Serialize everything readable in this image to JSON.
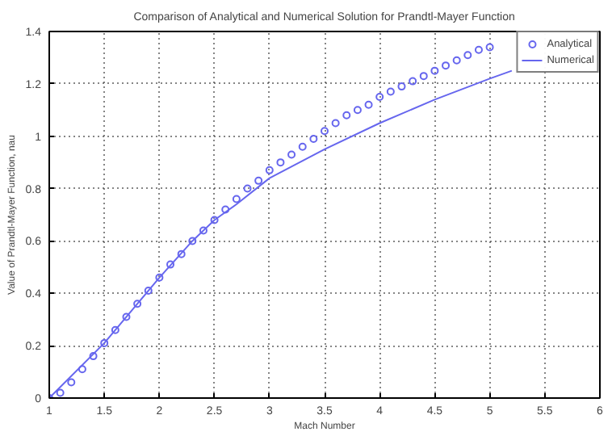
{
  "chart_data": {
    "type": "scatter",
    "title": "Comparison of Analytical and Numerical Solution for Prandtl-Mayer Function",
    "xlabel": "Mach Number",
    "ylabel": "Value of Prandtl-Mayer Function, nau",
    "xlim": [
      1,
      6
    ],
    "ylim": [
      0,
      1.4
    ],
    "xticks": [
      1,
      1.5,
      2,
      2.5,
      3,
      3.5,
      4,
      4.5,
      5,
      5.5,
      6
    ],
    "yticks": [
      0,
      0.2,
      0.4,
      0.6,
      0.8,
      1,
      1.2,
      1.4
    ],
    "grid": true,
    "legend": "top right",
    "marker": "circle",
    "series": [
      {
        "name": "Analytical",
        "color": "#6666ee",
        "x": [
          1,
          1.1,
          1.2,
          1.3,
          1.4,
          1.5,
          1.6,
          1.7,
          1.8,
          1.9,
          2,
          2.1,
          2.2,
          2.3,
          2.4,
          2.5,
          2.6,
          2.7,
          2.8,
          2.9,
          3,
          3.1,
          3.2,
          3.3,
          3.4,
          3.5,
          3.6,
          3.7,
          3.8,
          3.9,
          4,
          4.1,
          4.2,
          4.3,
          4.4,
          4.5,
          4.6,
          4.7,
          4.8,
          4.9,
          5
        ],
        "values": [
          0,
          0.02,
          0.06,
          0.11,
          0.16,
          0.21,
          0.26,
          0.31,
          0.36,
          0.41,
          0.46,
          0.51,
          0.55,
          0.6,
          0.64,
          0.68,
          0.72,
          0.76,
          0.8,
          0.83,
          0.87,
          0.9,
          0.93,
          0.96,
          0.99,
          1.02,
          1.05,
          1.08,
          1.1,
          1.12,
          1.15,
          1.17,
          1.19,
          1.21,
          1.23,
          1.25,
          1.27,
          1.29,
          1.31,
          1.33,
          1.34
        ]
      },
      {
        "name": "Numerical",
        "type": "line",
        "color": "#6666ee",
        "marker": "none",
        "x": [
          1,
          1.5,
          2,
          2.3,
          2.5,
          2.7,
          3,
          3.5,
          4,
          4.5,
          5,
          5.2
        ],
        "values": [
          0,
          0.21,
          0.46,
          0.6,
          0.68,
          0.74,
          0.84,
          0.95,
          1.05,
          1.14,
          1.22,
          1.25
        ]
      }
    ]
  }
}
